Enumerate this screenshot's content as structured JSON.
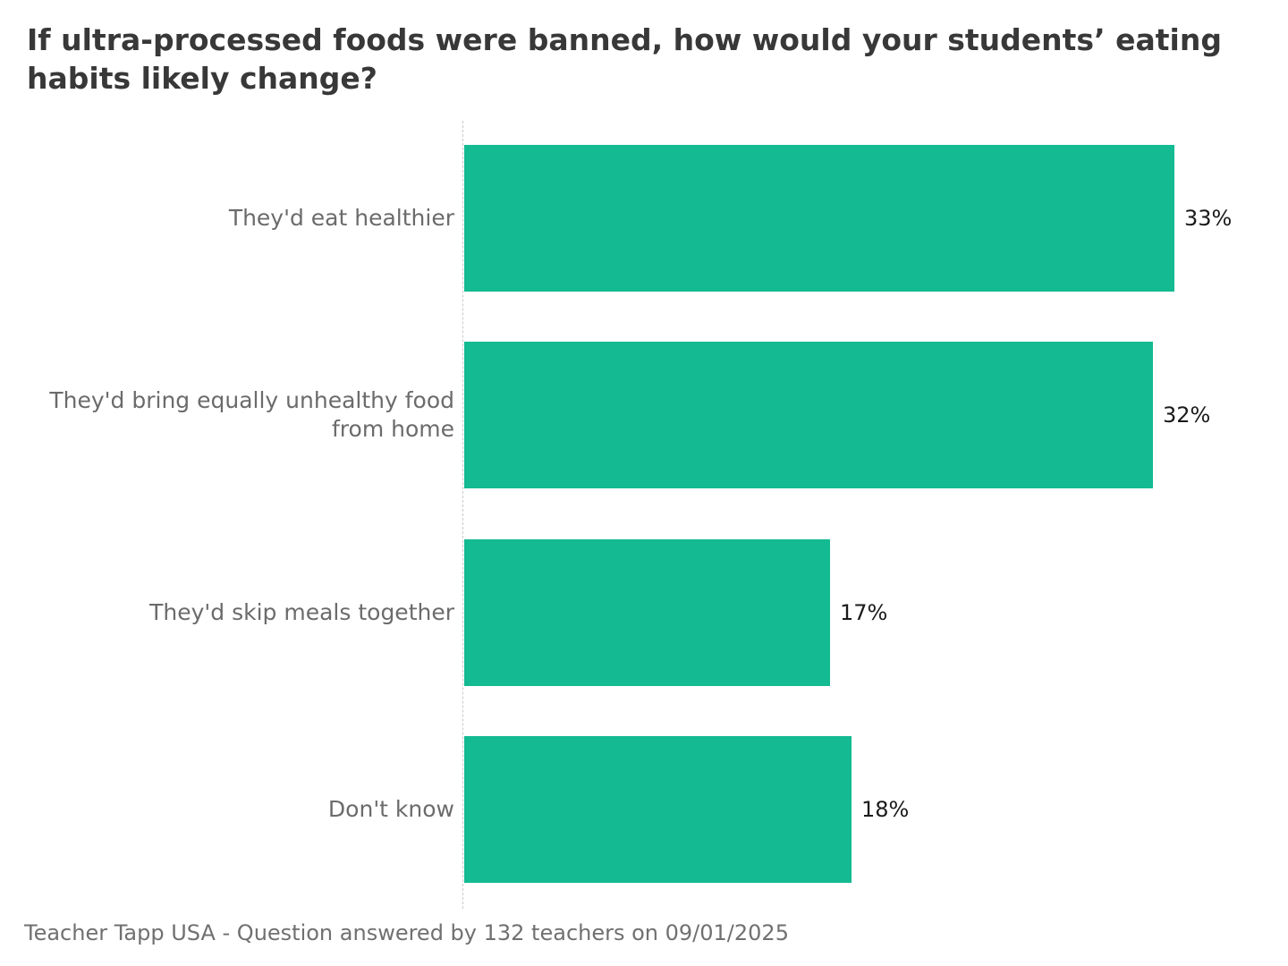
{
  "title": "If ultra-processed foods were banned, how would your students’ eating habits likely change?",
  "footer": "Teacher Tapp USA - Question answered by 132 teachers on 09/01/2025",
  "colors": {
    "background": "#ffffff",
    "title": "#383838",
    "label": "#6b6b6b",
    "value": "#1a1a1a",
    "footer": "#707070",
    "axis_line": "#c9c9c9",
    "bar": "#13ba92"
  },
  "chart_data": {
    "type": "bar",
    "orientation": "horizontal",
    "title": "If ultra-processed foods were banned, how would your students’ eating habits likely change?",
    "categories": [
      "They'd eat healthier",
      "They'd bring equally unhealthy food from home",
      "They'd skip meals together",
      "Don't know"
    ],
    "values": [
      33,
      32,
      17,
      18
    ],
    "value_labels": [
      "33%",
      "32%",
      "17%",
      "18%"
    ],
    "value_suffix": "%",
    "xlim": [
      0,
      37
    ],
    "grid": false,
    "legend": "none",
    "baseline": "dashed",
    "source_note": "Teacher Tapp USA - Question answered by 132 teachers on 09/01/2025"
  }
}
